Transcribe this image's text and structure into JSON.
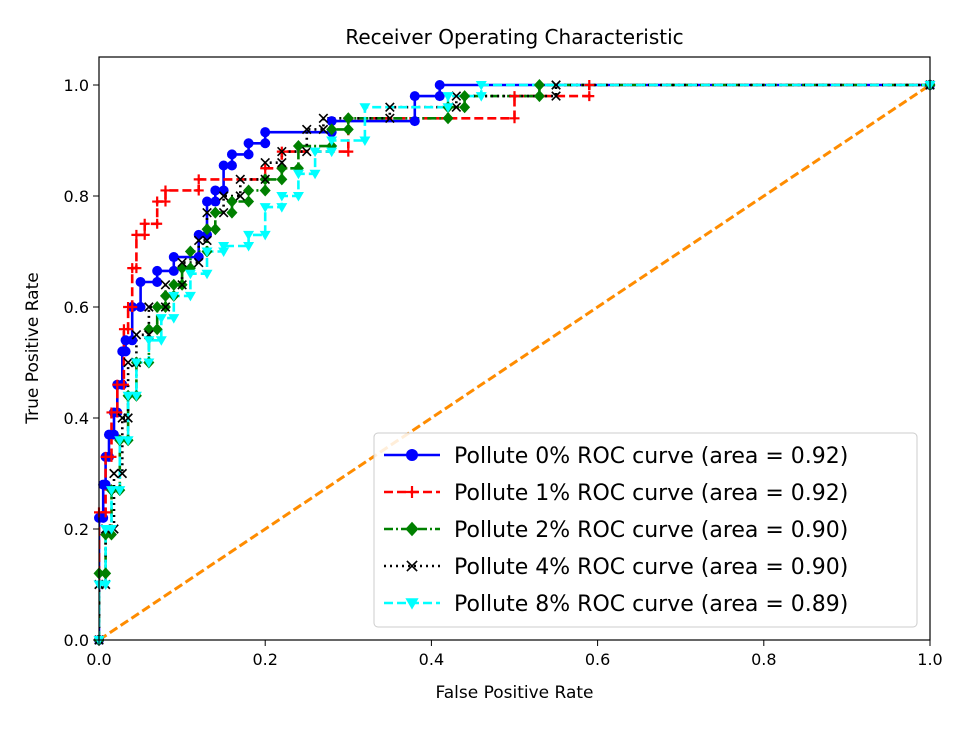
{
  "chart_data": {
    "type": "line",
    "title": "Receiver Operating Characteristic",
    "xlabel": "False Positive Rate",
    "ylabel": "True Positive Rate",
    "xlim": [
      0.0,
      1.0
    ],
    "ylim": [
      0.0,
      1.05
    ],
    "xticks": [
      0.0,
      0.2,
      0.4,
      0.6,
      0.8,
      1.0
    ],
    "yticks": [
      0.0,
      0.2,
      0.4,
      0.6,
      0.8,
      1.0
    ],
    "xtick_labels": [
      "0.0",
      "0.2",
      "0.4",
      "0.6",
      "0.8",
      "1.0"
    ],
    "ytick_labels": [
      "0.0",
      "0.2",
      "0.4",
      "0.6",
      "0.8",
      "1.0"
    ],
    "legend_position": "lower-right",
    "grid": false,
    "series": [
      {
        "name": "Pollute 0% ROC curve (area = 0.92)",
        "color": "#0000ff",
        "marker": "circle",
        "linestyle": "solid",
        "x": [
          0,
          0,
          0.005,
          0.005,
          0.008,
          0.008,
          0.012,
          0.012,
          0.018,
          0.018,
          0.022,
          0.022,
          0.028,
          0.028,
          0.032,
          0.032,
          0.04,
          0.04,
          0.05,
          0.05,
          0.07,
          0.07,
          0.09,
          0.09,
          0.12,
          0.12,
          0.13,
          0.13,
          0.14,
          0.14,
          0.15,
          0.15,
          0.16,
          0.16,
          0.18,
          0.18,
          0.2,
          0.2,
          0.28,
          0.28,
          0.38,
          0.38,
          0.41,
          0.41,
          1.0
        ],
        "y": [
          0,
          0.22,
          0.22,
          0.28,
          0.28,
          0.33,
          0.33,
          0.37,
          0.37,
          0.41,
          0.41,
          0.46,
          0.46,
          0.52,
          0.52,
          0.54,
          0.54,
          0.6,
          0.6,
          0.645,
          0.645,
          0.665,
          0.665,
          0.69,
          0.69,
          0.73,
          0.73,
          0.79,
          0.79,
          0.81,
          0.81,
          0.855,
          0.855,
          0.875,
          0.875,
          0.895,
          0.895,
          0.915,
          0.915,
          0.935,
          0.935,
          0.98,
          0.98,
          1.0,
          1.0
        ]
      },
      {
        "name": "Pollute 1% ROC curve (area = 0.92)",
        "color": "#ff0000",
        "marker": "plus",
        "linestyle": "dashed",
        "x": [
          0,
          0,
          0.008,
          0.008,
          0.015,
          0.015,
          0.022,
          0.022,
          0.03,
          0.03,
          0.035,
          0.035,
          0.04,
          0.04,
          0.045,
          0.045,
          0.055,
          0.055,
          0.07,
          0.07,
          0.08,
          0.08,
          0.12,
          0.12,
          0.2,
          0.2,
          0.22,
          0.22,
          0.3,
          0.3,
          0.5,
          0.5,
          0.59,
          0.59,
          1.0
        ],
        "y": [
          0,
          0.23,
          0.23,
          0.33,
          0.33,
          0.41,
          0.41,
          0.46,
          0.46,
          0.56,
          0.56,
          0.6,
          0.6,
          0.67,
          0.67,
          0.73,
          0.73,
          0.75,
          0.75,
          0.79,
          0.79,
          0.81,
          0.81,
          0.83,
          0.83,
          0.85,
          0.85,
          0.88,
          0.88,
          0.94,
          0.94,
          0.98,
          0.98,
          1.0,
          1.0
        ]
      },
      {
        "name": "Pollute 2% ROC curve (area = 0.90)",
        "color": "#008000",
        "marker": "diamond",
        "linestyle": "dashdot",
        "x": [
          0,
          0,
          0.008,
          0.008,
          0.015,
          0.015,
          0.025,
          0.025,
          0.035,
          0.035,
          0.045,
          0.045,
          0.06,
          0.06,
          0.07,
          0.07,
          0.08,
          0.08,
          0.09,
          0.09,
          0.1,
          0.1,
          0.11,
          0.11,
          0.13,
          0.13,
          0.14,
          0.14,
          0.16,
          0.16,
          0.18,
          0.18,
          0.2,
          0.2,
          0.22,
          0.22,
          0.24,
          0.24,
          0.28,
          0.28,
          0.3,
          0.3,
          0.42,
          0.42,
          0.44,
          0.44,
          0.53,
          0.53,
          1.0
        ],
        "y": [
          0,
          0.12,
          0.12,
          0.19,
          0.19,
          0.27,
          0.27,
          0.36,
          0.36,
          0.44,
          0.44,
          0.5,
          0.5,
          0.56,
          0.56,
          0.6,
          0.6,
          0.62,
          0.62,
          0.64,
          0.64,
          0.67,
          0.67,
          0.7,
          0.7,
          0.74,
          0.74,
          0.77,
          0.77,
          0.79,
          0.79,
          0.81,
          0.81,
          0.83,
          0.83,
          0.85,
          0.85,
          0.89,
          0.89,
          0.92,
          0.92,
          0.94,
          0.94,
          0.96,
          0.96,
          0.98,
          0.98,
          1.0,
          1.0
        ]
      },
      {
        "name": "Pollute 4% ROC curve (area = 0.90)",
        "color": "#000000",
        "marker": "x",
        "linestyle": "dotted",
        "x": [
          0,
          0,
          0.008,
          0.008,
          0.018,
          0.018,
          0.028,
          0.028,
          0.035,
          0.035,
          0.045,
          0.045,
          0.06,
          0.06,
          0.08,
          0.08,
          0.1,
          0.1,
          0.12,
          0.12,
          0.13,
          0.13,
          0.15,
          0.15,
          0.17,
          0.17,
          0.2,
          0.2,
          0.22,
          0.22,
          0.25,
          0.25,
          0.27,
          0.27,
          0.35,
          0.35,
          0.43,
          0.43,
          0.55,
          0.55,
          1.0
        ],
        "y": [
          0,
          0.1,
          0.1,
          0.2,
          0.2,
          0.3,
          0.3,
          0.4,
          0.4,
          0.5,
          0.5,
          0.55,
          0.55,
          0.6,
          0.6,
          0.64,
          0.64,
          0.68,
          0.68,
          0.72,
          0.72,
          0.77,
          0.77,
          0.8,
          0.8,
          0.83,
          0.83,
          0.86,
          0.86,
          0.88,
          0.88,
          0.92,
          0.92,
          0.94,
          0.94,
          0.96,
          0.96,
          0.98,
          0.98,
          1.0,
          1.0
        ]
      },
      {
        "name": "Pollute 8% ROC curve (area = 0.89)",
        "color": "#00ffff",
        "marker": "triangle-down",
        "linestyle": "dashed",
        "x": [
          0,
          0,
          0.008,
          0.008,
          0.015,
          0.015,
          0.025,
          0.025,
          0.035,
          0.035,
          0.045,
          0.045,
          0.06,
          0.06,
          0.075,
          0.075,
          0.09,
          0.09,
          0.11,
          0.11,
          0.13,
          0.13,
          0.15,
          0.15,
          0.18,
          0.18,
          0.2,
          0.2,
          0.22,
          0.22,
          0.24,
          0.24,
          0.26,
          0.26,
          0.28,
          0.28,
          0.32,
          0.32,
          0.42,
          0.42,
          0.46,
          0.46,
          1.0
        ],
        "y": [
          0,
          0.1,
          0.1,
          0.2,
          0.2,
          0.27,
          0.27,
          0.36,
          0.36,
          0.44,
          0.44,
          0.5,
          0.5,
          0.54,
          0.54,
          0.58,
          0.58,
          0.62,
          0.62,
          0.66,
          0.66,
          0.7,
          0.7,
          0.71,
          0.71,
          0.73,
          0.73,
          0.78,
          0.78,
          0.8,
          0.8,
          0.84,
          0.84,
          0.88,
          0.88,
          0.9,
          0.9,
          0.96,
          0.96,
          0.98,
          0.98,
          1.0,
          1.0
        ]
      },
      {
        "name": "chance diagonal",
        "color": "#ff8c00",
        "marker": "none",
        "linestyle": "dashed",
        "x": [
          0.0,
          1.0
        ],
        "y": [
          0.0,
          1.0
        ]
      }
    ]
  }
}
